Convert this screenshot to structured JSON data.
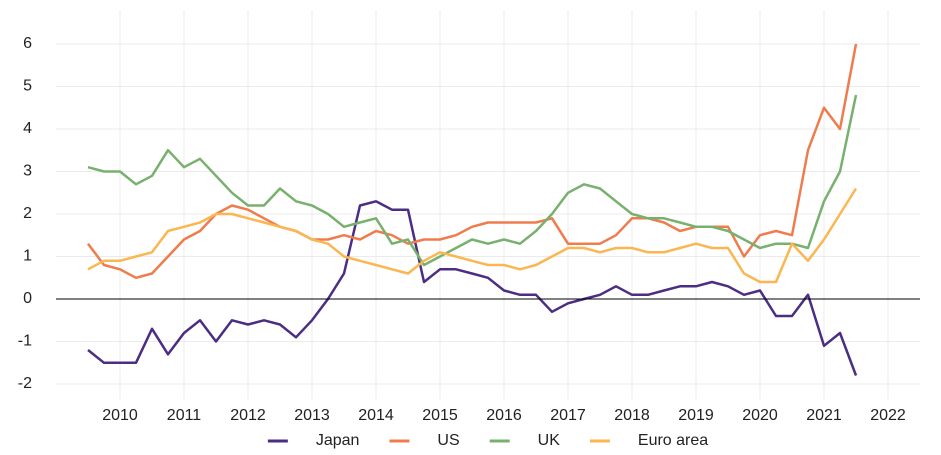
{
  "chart_data": {
    "type": "line",
    "x": [
      2010,
      2010.25,
      2010.5,
      2010.75,
      2011,
      2011.25,
      2011.5,
      2011.75,
      2012,
      2012.25,
      2012.5,
      2012.75,
      2013,
      2013.25,
      2013.5,
      2013.75,
      2014,
      2014.25,
      2014.5,
      2014.75,
      2015,
      2015.25,
      2015.5,
      2015.75,
      2016,
      2016.25,
      2016.5,
      2016.75,
      2017,
      2017.25,
      2017.5,
      2017.75,
      2018,
      2018.25,
      2018.5,
      2018.75,
      2019,
      2019.25,
      2019.5,
      2019.75,
      2020,
      2020.25,
      2020.5,
      2020.75,
      2021,
      2021.25,
      2021.5,
      2021.75,
      2022
    ],
    "series": [
      {
        "name": "Japan",
        "color": "#4b2e83",
        "values": [
          -1.2,
          -1.5,
          -1.5,
          -1.5,
          -0.7,
          -1.3,
          -0.8,
          -0.5,
          -1.0,
          -0.5,
          -0.6,
          -0.5,
          -0.6,
          -0.9,
          -0.5,
          0.0,
          0.6,
          2.2,
          2.3,
          2.1,
          2.1,
          0.4,
          0.7,
          0.7,
          0.6,
          0.5,
          0.2,
          0.1,
          0.1,
          -0.3,
          -0.1,
          0.0,
          0.1,
          0.3,
          0.1,
          0.1,
          0.2,
          0.3,
          0.3,
          0.4,
          0.3,
          0.1,
          0.2,
          -0.4,
          -0.4,
          0.1,
          -1.1,
          -0.8,
          -1.8
        ]
      },
      {
        "name": "US",
        "color": "#f07c4d",
        "values": [
          1.3,
          0.8,
          0.7,
          0.5,
          0.6,
          1.0,
          1.4,
          1.6,
          2.0,
          2.2,
          2.1,
          1.9,
          1.7,
          1.6,
          1.4,
          1.4,
          1.5,
          1.4,
          1.6,
          1.5,
          1.3,
          1.4,
          1.4,
          1.5,
          1.7,
          1.8,
          1.8,
          1.8,
          1.8,
          1.9,
          1.3,
          1.3,
          1.3,
          1.5,
          1.9,
          1.9,
          1.8,
          1.6,
          1.7,
          1.7,
          1.7,
          1.0,
          1.5,
          1.6,
          1.5,
          3.5,
          4.5,
          4.0,
          6.0
        ]
      },
      {
        "name": "UK",
        "color": "#78b06e",
        "values": [
          3.1,
          3.0,
          3.0,
          2.7,
          2.9,
          3.5,
          3.1,
          3.3,
          2.9,
          2.5,
          2.2,
          2.2,
          2.6,
          2.3,
          2.2,
          2.0,
          1.7,
          1.8,
          1.9,
          1.3,
          1.4,
          0.8,
          1.0,
          1.2,
          1.4,
          1.3,
          1.4,
          1.3,
          1.6,
          2.0,
          2.5,
          2.7,
          2.6,
          2.3,
          2.0,
          1.9,
          1.9,
          1.8,
          1.7,
          1.7,
          1.6,
          1.4,
          1.2,
          1.3,
          1.3,
          1.2,
          2.3,
          3.0,
          4.8
        ]
      },
      {
        "name": "Euro area",
        "color": "#fbb651",
        "values": [
          0.7,
          0.9,
          0.9,
          1.0,
          1.1,
          1.6,
          1.7,
          1.8,
          2.0,
          2.0,
          1.9,
          1.8,
          1.7,
          1.6,
          1.4,
          1.3,
          1.0,
          0.9,
          0.8,
          0.7,
          0.6,
          0.9,
          1.1,
          1.0,
          0.9,
          0.8,
          0.8,
          0.7,
          0.8,
          1.0,
          1.2,
          1.2,
          1.1,
          1.2,
          1.2,
          1.1,
          1.1,
          1.2,
          1.3,
          1.2,
          1.2,
          0.6,
          0.4,
          0.4,
          1.3,
          0.9,
          1.4,
          2.0,
          2.6
        ]
      }
    ],
    "xlim": [
      2009.5,
      2023
    ],
    "xticks": [
      {
        "value": 2010.5,
        "label": "2010"
      },
      {
        "value": 2011.5,
        "label": "2011"
      },
      {
        "value": 2012.5,
        "label": "2012"
      },
      {
        "value": 2013.5,
        "label": "2013"
      },
      {
        "value": 2014.5,
        "label": "2014"
      },
      {
        "value": 2015.5,
        "label": "2015"
      },
      {
        "value": 2016.5,
        "label": "2016"
      },
      {
        "value": 2017.5,
        "label": "2017"
      },
      {
        "value": 2018.5,
        "label": "2018"
      },
      {
        "value": 2019.5,
        "label": "2019"
      },
      {
        "value": 2020.5,
        "label": "2020"
      },
      {
        "value": 2021.5,
        "label": "2021"
      },
      {
        "value": 2022.5,
        "label": "2022"
      }
    ],
    "ylim": [
      -2.4,
      6.8
    ],
    "yticks": [
      -2,
      -1,
      0,
      1,
      2,
      3,
      4,
      5,
      6
    ],
    "grid": true,
    "legend": "bottom"
  }
}
